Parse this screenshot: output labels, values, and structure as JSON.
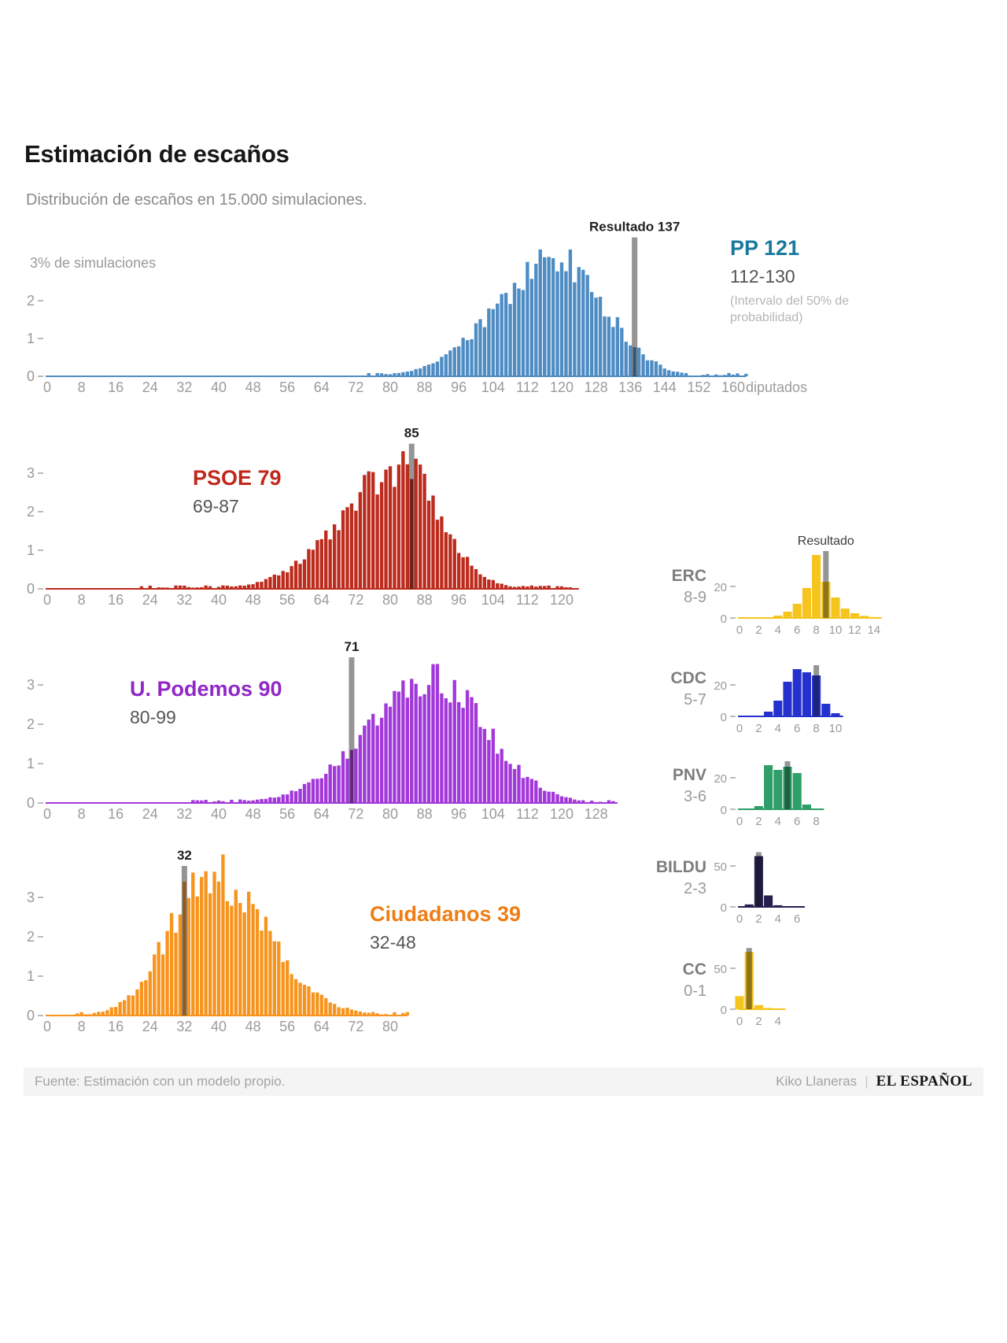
{
  "header": {
    "title": "Estimación de escaños",
    "subtitle": "Distribución de escaños en 15.000 simulaciones."
  },
  "footer": {
    "source": "Fuente: Estimación con un modelo propio.",
    "author": "Kiko Llaneras",
    "separator": "|",
    "brand": "EL ESPAÑOL"
  },
  "chart_data": [
    {
      "id": "pp",
      "type": "histogram",
      "party": "PP",
      "estimate_label": "PP 121",
      "interval_label": "112-130",
      "interval_note": "(Intervalo del 50% de probabilidad)",
      "color": "#4e8cc4",
      "label_color": "#197a9e",
      "result": 137,
      "marker_label": "Resultado 137",
      "axis_max": 163,
      "x_suffix": "diputados",
      "x_ticks": [
        0,
        8,
        16,
        24,
        32,
        40,
        48,
        56,
        64,
        72,
        80,
        88,
        96,
        104,
        112,
        120,
        128,
        136,
        144,
        152,
        160
      ],
      "y_ticks": [
        0,
        1,
        2
      ],
      "y_top_label": "3% de simulaciones",
      "y_top_value": 3,
      "ylabel": "% de simulaciones",
      "xlabel": "diputados",
      "dist": {
        "mode": 119,
        "sd_left": 14,
        "sd_right": 11,
        "peak": 3.05,
        "range": [
          74,
          163
        ],
        "seed": 3
      }
    },
    {
      "id": "psoe",
      "type": "histogram",
      "party": "PSOE",
      "estimate_label": "PSOE 79",
      "interval_label": "69-87",
      "color": "#bd2b1d",
      "label_color": "#c1271a",
      "result": 85,
      "marker_label": "85",
      "axis_max": 124,
      "x_ticks": [
        0,
        8,
        16,
        24,
        32,
        40,
        48,
        56,
        64,
        72,
        80,
        88,
        96,
        104,
        112,
        120
      ],
      "y_ticks": [
        0,
        1,
        2,
        3
      ],
      "dist": {
        "mode": 83,
        "sd_left": 14,
        "sd_right": 9,
        "peak": 3.15,
        "range": [
          22,
          124
        ],
        "seed": 11
      }
    },
    {
      "id": "podemos",
      "type": "histogram",
      "party": "U. Podemos",
      "estimate_label": "U. Podemos 90",
      "interval_label": "80-99",
      "color": "#a338da",
      "label_color": "#9127c6",
      "result": 71,
      "marker_label": "71",
      "axis_max": 133,
      "x_ticks": [
        0,
        8,
        16,
        24,
        32,
        40,
        48,
        56,
        64,
        72,
        80,
        88,
        96,
        104,
        112,
        120,
        128
      ],
      "y_ticks": [
        0,
        1,
        2,
        3
      ],
      "dist": {
        "mode": 90,
        "sd_left": 15,
        "sd_right": 12.5,
        "peak": 3.1,
        "range": [
          34,
          133
        ],
        "seed": 5
      }
    },
    {
      "id": "cs",
      "type": "histogram",
      "party": "Ciudadanos",
      "estimate_label": "Ciudadanos 39",
      "interval_label": "32-48",
      "color": "#f7941e",
      "label_color": "#ef7d14",
      "result": 32,
      "marker_label": "32",
      "axis_max": 84,
      "x_ticks": [
        0,
        8,
        16,
        24,
        32,
        40,
        48,
        56,
        64,
        72,
        80
      ],
      "y_ticks": [
        0,
        1,
        2,
        3
      ],
      "dist": {
        "mode": 38,
        "sd_left": 9.5,
        "sd_right": 13,
        "peak": 3.6,
        "range": [
          6,
          84
        ],
        "seed": 8
      }
    },
    {
      "id": "erc",
      "type": "histogram",
      "party": "ERC",
      "interval_label": "8-9",
      "color": "#f5c41d",
      "result": 9,
      "marker_label": "Resultado",
      "axis_max": 14.8,
      "x_ticks": [
        0,
        2,
        4,
        6,
        8,
        10,
        12,
        14
      ],
      "y_ticks": [
        0,
        20
      ],
      "x_start": 4,
      "values": [
        1.5,
        4,
        9,
        19,
        40,
        23,
        13,
        6,
        3,
        1.3,
        0.6
      ]
    },
    {
      "id": "cdc",
      "type": "histogram",
      "party": "CDC",
      "interval_label": "5-7",
      "color": "#2531cf",
      "result": 8,
      "marker_label": null,
      "axis_max": 10.8,
      "x_ticks": [
        0,
        2,
        4,
        6,
        8,
        10
      ],
      "y_ticks": [
        0,
        20
      ],
      "x_start": 3,
      "values": [
        3,
        10,
        22,
        30,
        28,
        26,
        8,
        2
      ]
    },
    {
      "id": "pnv",
      "type": "histogram",
      "party": "PNV",
      "interval_label": "3-6",
      "color": "#2f9e68",
      "result": 5,
      "marker_label": null,
      "axis_max": 8.8,
      "x_ticks": [
        0,
        2,
        4,
        6,
        8
      ],
      "y_ticks": [
        0,
        20
      ],
      "x_start": 2,
      "values": [
        2,
        28,
        25,
        27,
        23,
        3
      ]
    },
    {
      "id": "bildu",
      "type": "histogram",
      "party": "BILDU",
      "interval_label": "2-3",
      "color": "#232050",
      "result": 2,
      "marker_label": null,
      "axis_max": 6.8,
      "x_ticks": [
        0,
        2,
        4,
        6
      ],
      "y_ticks": [
        0,
        50
      ],
      "x_start": 1,
      "values": [
        3,
        62,
        14,
        2,
        0.7
      ]
    },
    {
      "id": "cc",
      "type": "histogram",
      "party": "CC",
      "interval_label": "0-1",
      "color": "#f5c41d",
      "result": 1,
      "marker_label": null,
      "axis_max": 4.8,
      "x_ticks": [
        0,
        2,
        4
      ],
      "y_ticks": [
        0,
        50
      ],
      "x_start": 0,
      "values": [
        16,
        70,
        5,
        1.5,
        0.6
      ]
    }
  ]
}
